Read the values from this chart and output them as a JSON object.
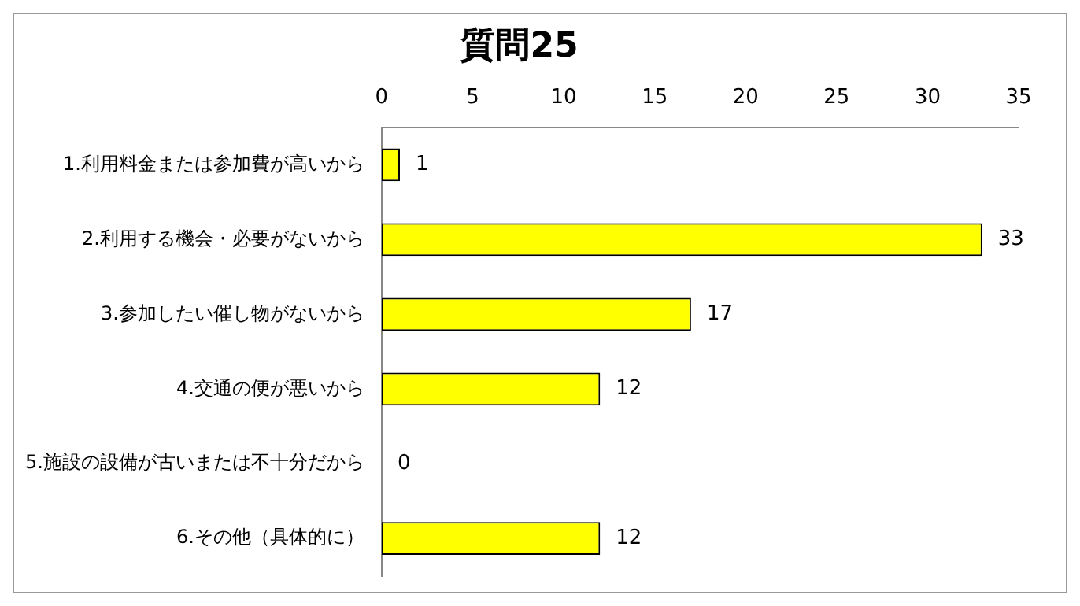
{
  "chart_data": {
    "type": "bar",
    "orientation": "horizontal",
    "title": "質問25",
    "categories": [
      "1.利用料金または参加費が高いから",
      "2.利用する機会・必要がないから",
      "3.参加したい催し物がないから",
      "4.交通の便が悪いから",
      "5.施設の設備が古いまたは不十分だから",
      "6.その他（具体的に）"
    ],
    "values": [
      1,
      33,
      17,
      12,
      0,
      12
    ],
    "color": "#ffff00",
    "xlim": [
      0,
      35
    ],
    "xticks": [
      0,
      5,
      10,
      15,
      20,
      25,
      30,
      35
    ],
    "grid": false,
    "legend": false,
    "data_labels": true
  }
}
